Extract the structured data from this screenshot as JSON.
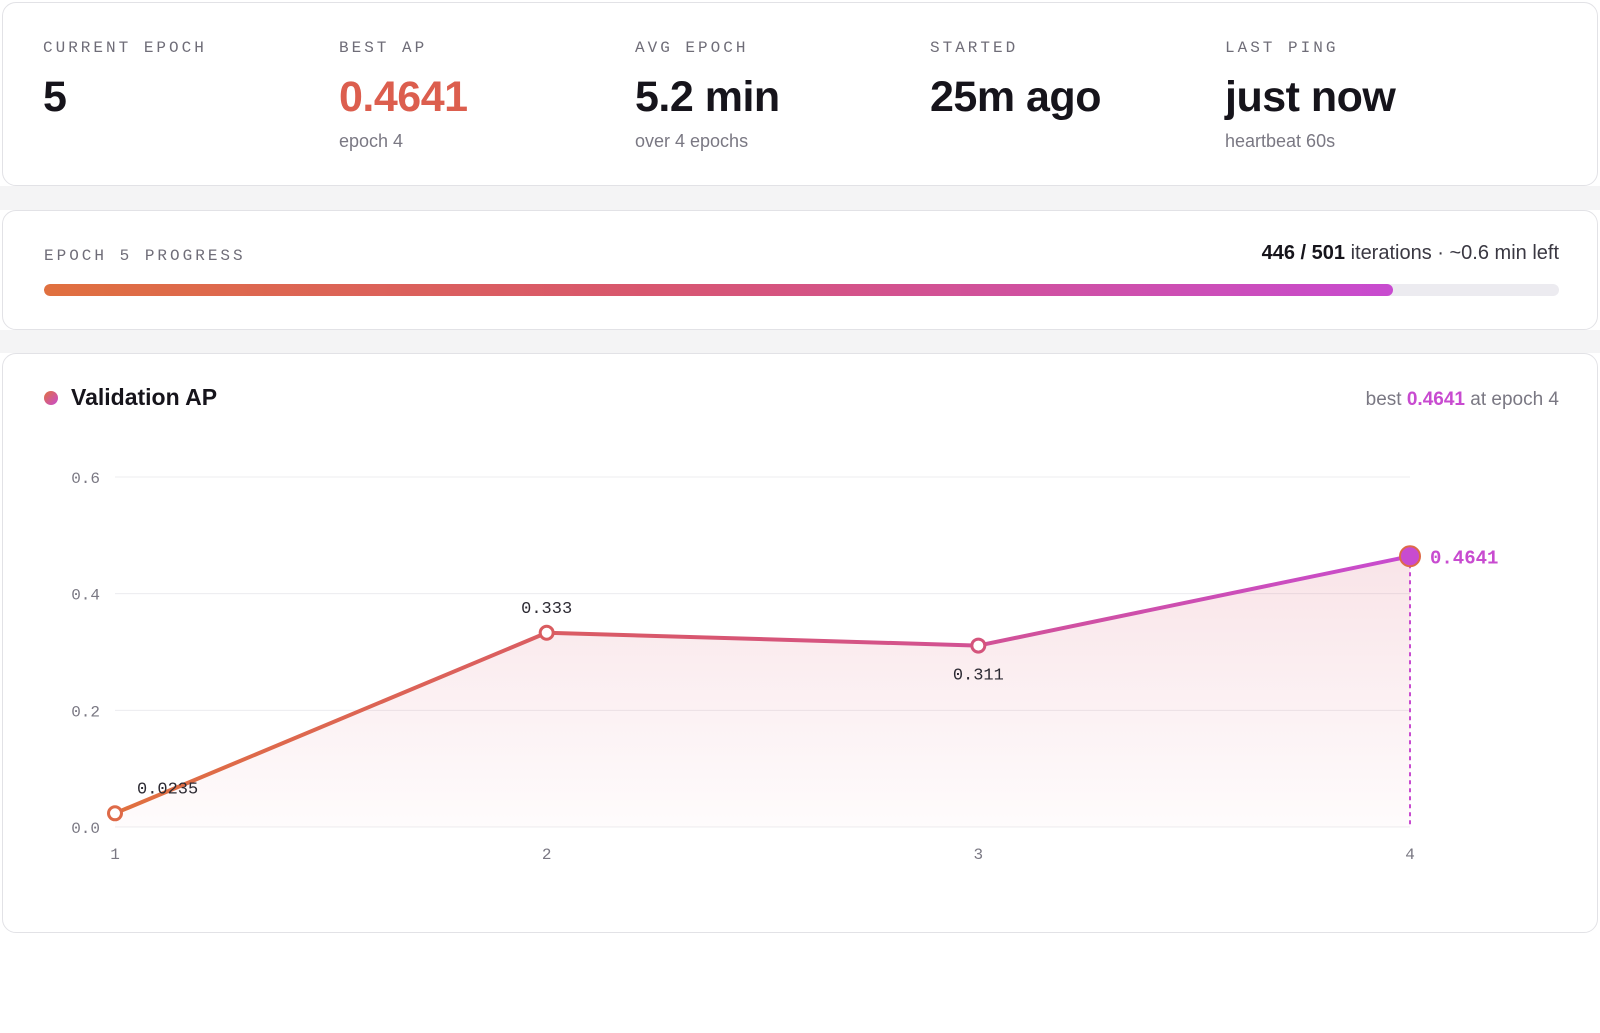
{
  "stats": [
    {
      "label": "CURRENT EPOCH",
      "value": "5",
      "sub": ""
    },
    {
      "label": "BEST AP",
      "value": "0.4641",
      "sub": "epoch 4"
    },
    {
      "label": "AVG EPOCH",
      "value": "5.2 min",
      "sub": "over 4 epochs"
    },
    {
      "label": "STARTED",
      "value": "25m ago",
      "sub": ""
    },
    {
      "label": "LAST PING",
      "value": "just now",
      "sub": "heartbeat 60s"
    }
  ],
  "progress": {
    "label": "EPOCH 5 PROGRESS",
    "current": "446",
    "total": "501",
    "current_num": 446,
    "total_num": 501,
    "unit": "iterations",
    "eta": "· ~0.6 min left"
  },
  "chart_panel": {
    "title": "Validation AP",
    "best_prefix": "best",
    "best_value": "0.4641",
    "best_suffix": "at epoch 4"
  },
  "colors": {
    "accent_orange": "#e0703f",
    "accent_red": "#dc5e4e",
    "accent_magenta": "#c84bd0"
  },
  "chart_data": {
    "type": "line",
    "title": "Validation AP",
    "x": [
      1,
      2,
      3,
      4
    ],
    "xticks": [
      "1",
      "2",
      "3",
      "4"
    ],
    "yticks": [
      "0.0",
      "0.2",
      "0.4",
      "0.6"
    ],
    "ylim": [
      0,
      0.6
    ],
    "series": [
      {
        "values": [
          0.0235,
          0.333,
          0.311,
          0.4641
        ],
        "labels": [
          "0.0235",
          "0.333",
          "0.311",
          "0.4641"
        ]
      }
    ],
    "best_index": 3,
    "grid": true,
    "area_fill": true
  }
}
